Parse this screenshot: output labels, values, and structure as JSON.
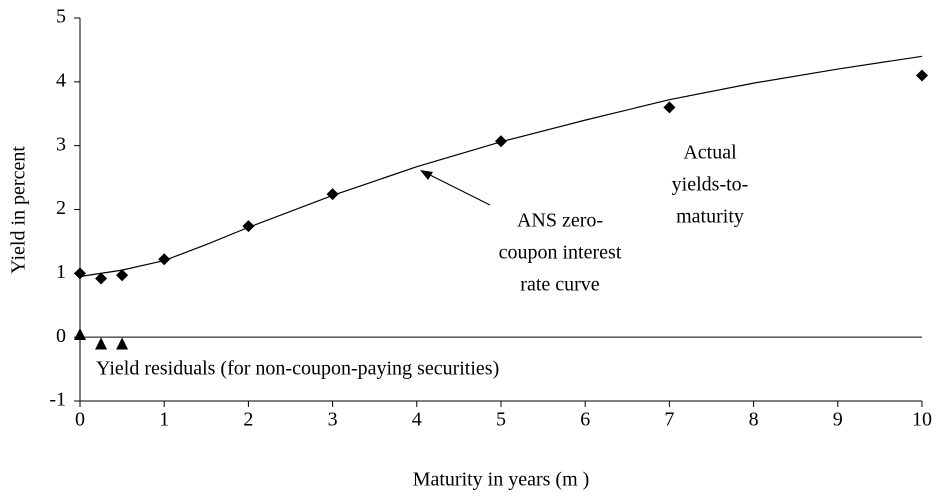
{
  "chart_data": {
    "type": "scatter",
    "y_label": "Yield in percent",
    "x_label": "Maturity in years (m )",
    "xlim": [
      0,
      10
    ],
    "ylim": [
      -1,
      5
    ],
    "xticks": [
      0,
      1,
      2,
      3,
      4,
      5,
      6,
      7,
      8,
      9,
      10
    ],
    "yticks": [
      -1,
      0,
      1,
      2,
      3,
      4,
      5
    ],
    "series": [
      {
        "name": "ANS zero-coupon interest rate curve",
        "kind": "line",
        "color": "#000000",
        "x": [
          0,
          0.5,
          1,
          1.5,
          2,
          3,
          4,
          5,
          6,
          7,
          8,
          9,
          10
        ],
        "values": [
          0.95,
          1.05,
          1.2,
          1.45,
          1.72,
          2.22,
          2.67,
          3.06,
          3.4,
          3.72,
          3.98,
          4.2,
          4.4
        ]
      },
      {
        "name": "Actual yields-to-maturity",
        "kind": "diamond",
        "color": "#000000",
        "x": [
          0,
          0.25,
          0.5,
          1,
          2,
          3,
          5,
          7,
          10
        ],
        "values": [
          1.0,
          0.92,
          0.97,
          1.22,
          1.74,
          2.24,
          3.07,
          3.6,
          4.1
        ]
      },
      {
        "name": "Yield residuals (for non-coupon-paying securities)",
        "kind": "triangle",
        "color": "#000000",
        "x": [
          0,
          0.25,
          0.5
        ],
        "values": [
          0.05,
          -0.1,
          -0.1
        ]
      }
    ],
    "annotations": [
      {
        "lines": [
          "ANS zero-",
          "coupon interest",
          "rate curve"
        ]
      },
      {
        "lines": [
          "Actual",
          "yields-to-",
          "maturity"
        ]
      },
      {
        "lines": [
          "Yield residuals (for non-coupon-paying securities)"
        ]
      }
    ]
  }
}
